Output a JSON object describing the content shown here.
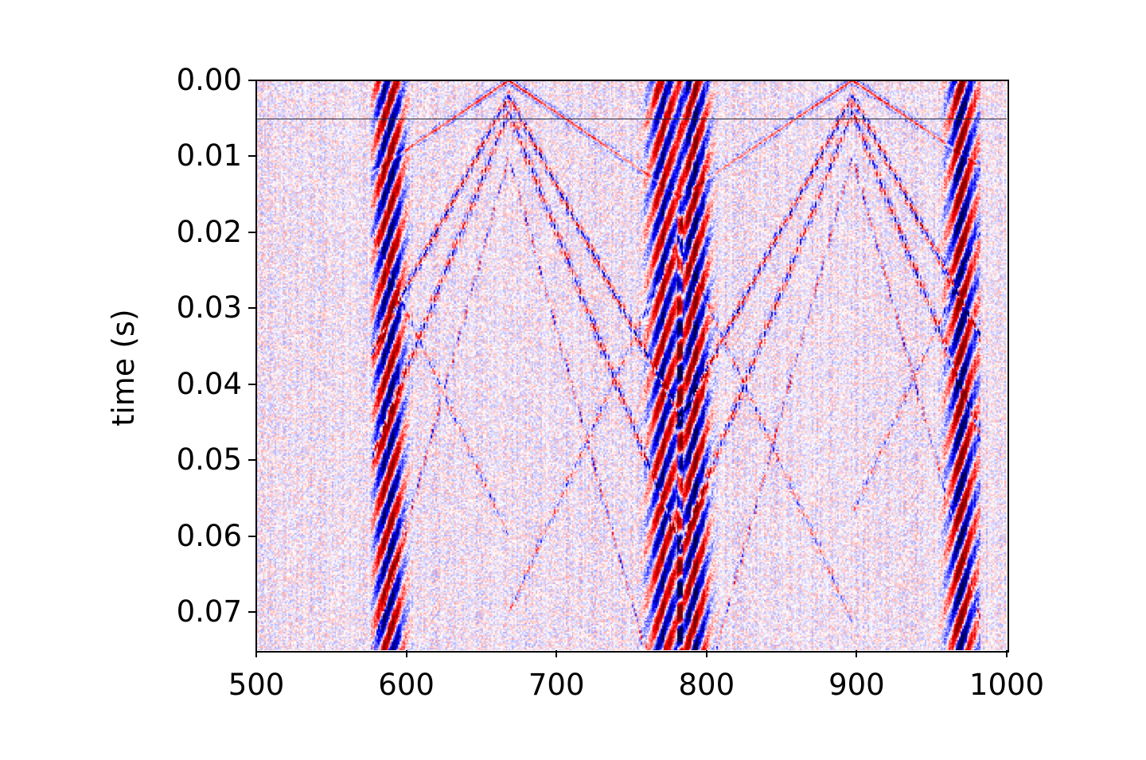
{
  "chart_data": {
    "type": "heatmap",
    "title": "",
    "xlabel": "",
    "ylabel": "time (s)",
    "xlim": [
      500,
      1000
    ],
    "ylim": [
      0.075,
      0.0
    ],
    "xticks": [
      500,
      600,
      700,
      800,
      900,
      1000
    ],
    "xtick_labels": [
      "500",
      "600",
      "700",
      "800",
      "900",
      "1000"
    ],
    "yticks": [
      0.0,
      0.01,
      0.02,
      0.03,
      0.04,
      0.05,
      0.06,
      0.07
    ],
    "ytick_labels": [
      "0.00",
      "0.01",
      "0.02",
      "0.03",
      "0.04",
      "0.05",
      "0.06",
      "0.07"
    ],
    "colormap": "seismic",
    "reference_line_time": 0.005,
    "sources": [
      668,
      897
    ],
    "strong_trace": 782,
    "colors": {
      "negative": "#0000ff",
      "positive": "#ff0000",
      "neutral": "#ffffff"
    }
  }
}
